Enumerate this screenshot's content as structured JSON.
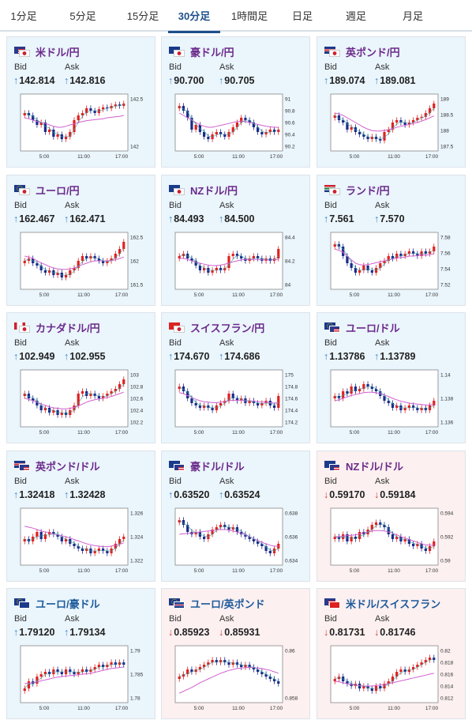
{
  "tabs": [
    "1分足",
    "5分足",
    "15分足",
    "30分足",
    "1時間足",
    "日足",
    "週足",
    "月足"
  ],
  "active_tab": "30分足",
  "labels": {
    "bid": "Bid",
    "ask": "Ask"
  },
  "colors": {
    "up_card_bg": "#eaf5fc",
    "down_card_bg": "#fcf0f0",
    "up_arrow": "#3a86c8",
    "down_arrow": "#d04040",
    "bull_candle": "#e02020",
    "bear_candle": "#1a2a8a",
    "ma_line": "#d060d0"
  },
  "cards": [
    {
      "pair": "米ドル/円",
      "dir": "up",
      "bid": "142.814",
      "ask": "142.816",
      "flags": [
        "us",
        "jp"
      ],
      "y_ticks": [
        "142.5",
        "142"
      ],
      "x_ticks": [
        "5:00",
        "11:00",
        "17:00"
      ],
      "shape": [
        0.7,
        0.65,
        0.55,
        0.45,
        0.5,
        0.3,
        0.35,
        0.2,
        0.25,
        0.15,
        0.2,
        0.3,
        0.55,
        0.65,
        0.7,
        0.8,
        0.75,
        0.7,
        0.78,
        0.82,
        0.8,
        0.85,
        0.88,
        0.85,
        0.9
      ],
      "ma": [
        0.6,
        0.58,
        0.55,
        0.52,
        0.5,
        0.48,
        0.45,
        0.42,
        0.4,
        0.4,
        0.42,
        0.45,
        0.47,
        0.5,
        0.52,
        0.54,
        0.55,
        0.56,
        0.57,
        0.58,
        0.6,
        0.61,
        0.62,
        0.63,
        0.65
      ]
    },
    {
      "pair": "豪ドル/円",
      "dir": "up",
      "bid": "90.700",
      "ask": "90.705",
      "flags": [
        "au",
        "jp"
      ],
      "y_ticks": [
        "91",
        "90.8",
        "90.6",
        "90.4",
        "90.2"
      ],
      "x_ticks": [
        "5:00",
        "11:00",
        "17:00"
      ],
      "shape": [
        0.85,
        0.75,
        0.6,
        0.35,
        0.45,
        0.3,
        0.2,
        0.15,
        0.25,
        0.3,
        0.25,
        0.2,
        0.3,
        0.4,
        0.5,
        0.6,
        0.55,
        0.5,
        0.4,
        0.3,
        0.25,
        0.3,
        0.35,
        0.3,
        0.35
      ],
      "ma": [
        0.7,
        0.65,
        0.6,
        0.55,
        0.5,
        0.45,
        0.42,
        0.4,
        0.4,
        0.42,
        0.44,
        0.46,
        0.48,
        0.5,
        0.52,
        0.53,
        0.52,
        0.5,
        0.48,
        0.46,
        0.44,
        0.42,
        0.41,
        0.4,
        0.4
      ]
    },
    {
      "pair": "英ポンド/円",
      "dir": "up",
      "bid": "189.074",
      "ask": "189.081",
      "flags": [
        "uk",
        "jp"
      ],
      "y_ticks": [
        "189",
        "188.5",
        "188",
        "187.5"
      ],
      "x_ticks": [
        "5:00",
        "11:00",
        "17:00"
      ],
      "shape": [
        0.65,
        0.55,
        0.5,
        0.35,
        0.4,
        0.3,
        0.25,
        0.2,
        0.15,
        0.2,
        0.15,
        0.12,
        0.3,
        0.35,
        0.5,
        0.55,
        0.5,
        0.45,
        0.5,
        0.55,
        0.6,
        0.62,
        0.7,
        0.8,
        0.9
      ],
      "ma": [
        0.7,
        0.68,
        0.65,
        0.6,
        0.55,
        0.5,
        0.45,
        0.4,
        0.36,
        0.33,
        0.32,
        0.32,
        0.33,
        0.35,
        0.37,
        0.4,
        0.42,
        0.44,
        0.46,
        0.48,
        0.5,
        0.53,
        0.56,
        0.6,
        0.64
      ]
    },
    {
      "pair": "ユーロ/円",
      "dir": "up",
      "bid": "162.467",
      "ask": "162.471",
      "flags": [
        "eu",
        "jp"
      ],
      "y_ticks": [
        "162.5",
        "162",
        "161.5"
      ],
      "x_ticks": [
        "5:00",
        "11:00",
        "17:00"
      ],
      "shape": [
        0.5,
        0.55,
        0.45,
        0.4,
        0.3,
        0.25,
        0.3,
        0.2,
        0.25,
        0.15,
        0.2,
        0.3,
        0.35,
        0.5,
        0.6,
        0.55,
        0.6,
        0.55,
        0.5,
        0.45,
        0.5,
        0.55,
        0.65,
        0.75,
        0.9
      ],
      "ma": [
        0.6,
        0.58,
        0.55,
        0.5,
        0.46,
        0.42,
        0.38,
        0.35,
        0.33,
        0.32,
        0.32,
        0.33,
        0.35,
        0.38,
        0.42,
        0.45,
        0.48,
        0.5,
        0.5,
        0.5,
        0.5,
        0.51,
        0.52,
        0.55,
        0.58
      ]
    },
    {
      "pair": "NZドル/円",
      "dir": "up",
      "bid": "84.493",
      "ask": "84.500",
      "flags": [
        "nz",
        "jp"
      ],
      "y_ticks": [
        "84.4",
        "84.2",
        "84"
      ],
      "x_ticks": [
        "5:00",
        "11:00",
        "17:00"
      ],
      "shape": [
        0.6,
        0.65,
        0.55,
        0.5,
        0.4,
        0.3,
        0.35,
        0.25,
        0.3,
        0.35,
        0.3,
        0.35,
        0.6,
        0.65,
        0.6,
        0.55,
        0.5,
        0.55,
        0.6,
        0.55,
        0.5,
        0.55,
        0.5,
        0.55,
        0.75
      ],
      "ma": [
        0.55,
        0.55,
        0.53,
        0.5,
        0.47,
        0.45,
        0.43,
        0.41,
        0.4,
        0.4,
        0.41,
        0.43,
        0.45,
        0.48,
        0.5,
        0.52,
        0.53,
        0.53,
        0.53,
        0.53,
        0.52,
        0.52,
        0.52,
        0.52,
        0.53
      ]
    },
    {
      "pair": "ランド/円",
      "dir": "up",
      "bid": "7.561",
      "ask": "7.570",
      "flags": [
        "za",
        "jp"
      ],
      "y_ticks": [
        "7.58",
        "7.56",
        "7.54",
        "7.52"
      ],
      "x_ticks": [
        "5:00",
        "11:00",
        "17:00"
      ],
      "shape": [
        0.85,
        0.8,
        0.6,
        0.45,
        0.35,
        0.25,
        0.3,
        0.4,
        0.3,
        0.25,
        0.35,
        0.45,
        0.5,
        0.6,
        0.55,
        0.65,
        0.6,
        0.65,
        0.7,
        0.65,
        0.6,
        0.7,
        0.65,
        0.7,
        0.8
      ],
      "ma": [
        0.75,
        0.72,
        0.68,
        0.6,
        0.52,
        0.45,
        0.42,
        0.41,
        0.42,
        0.44,
        0.46,
        0.48,
        0.5,
        0.52,
        0.54,
        0.56,
        0.57,
        0.58,
        0.6,
        0.6,
        0.61,
        0.62,
        0.62,
        0.63,
        0.65
      ]
    },
    {
      "pair": "カナダドル/円",
      "dir": "up",
      "bid": "102.949",
      "ask": "102.955",
      "flags": [
        "ca",
        "jp"
      ],
      "y_ticks": [
        "103",
        "102.8",
        "102.6",
        "102.4",
        "102.2"
      ],
      "x_ticks": [
        "5:00",
        "11:00",
        "17:00"
      ],
      "shape": [
        0.6,
        0.5,
        0.45,
        0.35,
        0.25,
        0.3,
        0.2,
        0.25,
        0.15,
        0.2,
        0.15,
        0.25,
        0.35,
        0.6,
        0.65,
        0.55,
        0.6,
        0.55,
        0.5,
        0.55,
        0.6,
        0.65,
        0.7,
        0.8,
        0.9
      ],
      "ma": [
        0.5,
        0.48,
        0.45,
        0.42,
        0.38,
        0.35,
        0.32,
        0.3,
        0.29,
        0.28,
        0.28,
        0.29,
        0.31,
        0.34,
        0.38,
        0.42,
        0.45,
        0.47,
        0.49,
        0.5,
        0.52,
        0.54,
        0.57,
        0.6,
        0.63
      ]
    },
    {
      "pair": "スイスフラン/円",
      "dir": "up",
      "bid": "174.670",
      "ask": "174.686",
      "flags": [
        "ch",
        "jp"
      ],
      "y_ticks": [
        "175",
        "174.8",
        "174.6",
        "174.4",
        "174.2"
      ],
      "x_ticks": [
        "5:00",
        "11:00",
        "17:00"
      ],
      "shape": [
        0.75,
        0.65,
        0.5,
        0.4,
        0.35,
        0.3,
        0.35,
        0.3,
        0.25,
        0.35,
        0.4,
        0.45,
        0.6,
        0.5,
        0.45,
        0.5,
        0.4,
        0.45,
        0.4,
        0.35,
        0.4,
        0.45,
        0.35,
        0.3,
        0.55
      ],
      "ma": [
        0.62,
        0.6,
        0.56,
        0.52,
        0.48,
        0.45,
        0.43,
        0.42,
        0.41,
        0.41,
        0.42,
        0.43,
        0.45,
        0.46,
        0.46,
        0.46,
        0.45,
        0.45,
        0.44,
        0.43,
        0.42,
        0.42,
        0.41,
        0.4,
        0.41
      ]
    },
    {
      "pair": "ユーロ/ドル",
      "dir": "up",
      "bid": "1.13786",
      "ask": "1.13789",
      "flags": [
        "eu",
        "us"
      ],
      "y_ticks": [
        "1.14",
        "1.138",
        "1.136"
      ],
      "x_ticks": [
        "5:00",
        "11:00",
        "17:00"
      ],
      "shape": [
        0.55,
        0.5,
        0.65,
        0.6,
        0.75,
        0.65,
        0.7,
        0.8,
        0.75,
        0.7,
        0.65,
        0.55,
        0.45,
        0.4,
        0.3,
        0.35,
        0.25,
        0.3,
        0.35,
        0.3,
        0.25,
        0.3,
        0.25,
        0.35,
        0.45
      ],
      "ma": [
        0.45,
        0.47,
        0.5,
        0.53,
        0.56,
        0.58,
        0.6,
        0.62,
        0.63,
        0.63,
        0.62,
        0.6,
        0.57,
        0.54,
        0.5,
        0.47,
        0.44,
        0.42,
        0.4,
        0.39,
        0.38,
        0.37,
        0.36,
        0.36,
        0.37
      ]
    },
    {
      "pair": "英ポンド/ドル",
      "dir": "up",
      "bid": "1.32418",
      "ask": "1.32428",
      "flags": [
        "uk",
        "us"
      ],
      "y_ticks": [
        "1.326",
        "1.324",
        "1.322"
      ],
      "x_ticks": [
        "5:00",
        "11:00",
        "17:00"
      ],
      "shape": [
        0.45,
        0.4,
        0.5,
        0.6,
        0.45,
        0.55,
        0.6,
        0.55,
        0.5,
        0.4,
        0.45,
        0.35,
        0.3,
        0.25,
        0.2,
        0.25,
        0.15,
        0.2,
        0.25,
        0.2,
        0.15,
        0.25,
        0.35,
        0.45,
        0.5
      ],
      "ma": [
        0.72,
        0.7,
        0.68,
        0.65,
        0.62,
        0.6,
        0.58,
        0.56,
        0.54,
        0.52,
        0.5,
        0.47,
        0.44,
        0.41,
        0.38,
        0.35,
        0.33,
        0.31,
        0.3,
        0.29,
        0.29,
        0.3,
        0.32,
        0.34,
        0.37
      ]
    },
    {
      "pair": "豪ドル/ドル",
      "dir": "up",
      "bid": "0.63520",
      "ask": "0.63524",
      "flags": [
        "au",
        "us"
      ],
      "y_ticks": [
        "0.638",
        "0.636",
        "0.634"
      ],
      "x_ticks": [
        "5:00",
        "11:00",
        "17:00"
      ],
      "shape": [
        0.85,
        0.75,
        0.6,
        0.55,
        0.6,
        0.5,
        0.45,
        0.55,
        0.65,
        0.7,
        0.75,
        0.7,
        0.65,
        0.7,
        0.6,
        0.55,
        0.5,
        0.45,
        0.4,
        0.35,
        0.3,
        0.2,
        0.15,
        0.25,
        0.35
      ],
      "ma": [
        0.55,
        0.56,
        0.57,
        0.58,
        0.59,
        0.6,
        0.61,
        0.62,
        0.63,
        0.64,
        0.65,
        0.65,
        0.64,
        0.62,
        0.6,
        0.57,
        0.54,
        0.5,
        0.46,
        0.42,
        0.38,
        0.35,
        0.32,
        0.3,
        0.3
      ]
    },
    {
      "pair": "NZドル/ドル",
      "dir": "down",
      "bid": "0.59170",
      "ask": "0.59184",
      "flags": [
        "nz",
        "us"
      ],
      "y_ticks": [
        "0.594",
        "0.592",
        "0.59"
      ],
      "x_ticks": [
        "5:00",
        "11:00",
        "17:00"
      ],
      "shape": [
        0.5,
        0.45,
        0.55,
        0.4,
        0.5,
        0.45,
        0.6,
        0.55,
        0.65,
        0.75,
        0.8,
        0.75,
        0.7,
        0.55,
        0.45,
        0.5,
        0.4,
        0.45,
        0.35,
        0.3,
        0.35,
        0.25,
        0.2,
        0.3,
        0.4
      ],
      "ma": [
        0.5,
        0.5,
        0.51,
        0.52,
        0.53,
        0.54,
        0.56,
        0.58,
        0.6,
        0.62,
        0.63,
        0.63,
        0.62,
        0.6,
        0.57,
        0.54,
        0.5,
        0.47,
        0.44,
        0.41,
        0.38,
        0.35,
        0.33,
        0.32,
        0.32
      ]
    },
    {
      "pair": "ユーロ/豪ドル",
      "dir": "up",
      "bid": "1.79120",
      "ask": "1.79134",
      "flags": [
        "eu",
        "au"
      ],
      "y_ticks": [
        "1.79",
        "1.785",
        "1.78"
      ],
      "x_ticks": [
        "5:00",
        "11:00",
        "17:00"
      ],
      "shape": [
        0.2,
        0.35,
        0.3,
        0.45,
        0.5,
        0.55,
        0.5,
        0.6,
        0.55,
        0.5,
        0.6,
        0.55,
        0.5,
        0.55,
        0.6,
        0.55,
        0.6,
        0.65,
        0.7,
        0.65,
        0.7,
        0.75,
        0.7,
        0.75,
        0.7
      ],
      "ma": [
        0.3,
        0.31,
        0.32,
        0.34,
        0.36,
        0.38,
        0.4,
        0.42,
        0.44,
        0.45,
        0.46,
        0.47,
        0.48,
        0.49,
        0.5,
        0.51,
        0.52,
        0.54,
        0.56,
        0.58,
        0.6,
        0.62,
        0.63,
        0.64,
        0.65
      ]
    },
    {
      "pair": "ユーロ/英ポンド",
      "dir": "down",
      "bid": "0.85923",
      "ask": "0.85931",
      "flags": [
        "eu",
        "uk"
      ],
      "y_ticks": [
        "0.86",
        "0.858"
      ],
      "x_ticks": [
        "5:00",
        "11:00",
        "17:00"
      ],
      "shape": [
        0.45,
        0.5,
        0.6,
        0.55,
        0.6,
        0.65,
        0.7,
        0.75,
        0.8,
        0.75,
        0.8,
        0.75,
        0.7,
        0.75,
        0.7,
        0.65,
        0.7,
        0.65,
        0.6,
        0.55,
        0.5,
        0.45,
        0.4,
        0.35,
        0.3
      ],
      "ma": [
        0.1,
        0.14,
        0.18,
        0.22,
        0.27,
        0.32,
        0.36,
        0.4,
        0.44,
        0.48,
        0.52,
        0.55,
        0.58,
        0.6,
        0.62,
        0.63,
        0.64,
        0.64,
        0.64,
        0.63,
        0.62,
        0.6,
        0.58,
        0.55,
        0.52
      ]
    },
    {
      "pair": "米ドル/スイスフラン",
      "dir": "down",
      "bid": "0.81731",
      "ask": "0.81746",
      "flags": [
        "us",
        "ch"
      ],
      "y_ticks": [
        "0.82",
        "0.818",
        "0.816",
        "0.814",
        "0.812"
      ],
      "x_ticks": [
        "5:00",
        "11:00",
        "17:00"
      ],
      "shape": [
        0.4,
        0.45,
        0.35,
        0.3,
        0.25,
        0.3,
        0.2,
        0.25,
        0.2,
        0.15,
        0.25,
        0.2,
        0.3,
        0.35,
        0.45,
        0.55,
        0.6,
        0.55,
        0.6,
        0.65,
        0.7,
        0.75,
        0.8,
        0.85,
        0.8
      ],
      "ma": [
        0.35,
        0.34,
        0.32,
        0.3,
        0.28,
        0.27,
        0.26,
        0.25,
        0.25,
        0.25,
        0.26,
        0.27,
        0.28,
        0.3,
        0.32,
        0.34,
        0.36,
        0.38,
        0.4,
        0.42,
        0.44,
        0.46,
        0.48,
        0.5,
        0.52
      ]
    }
  ]
}
